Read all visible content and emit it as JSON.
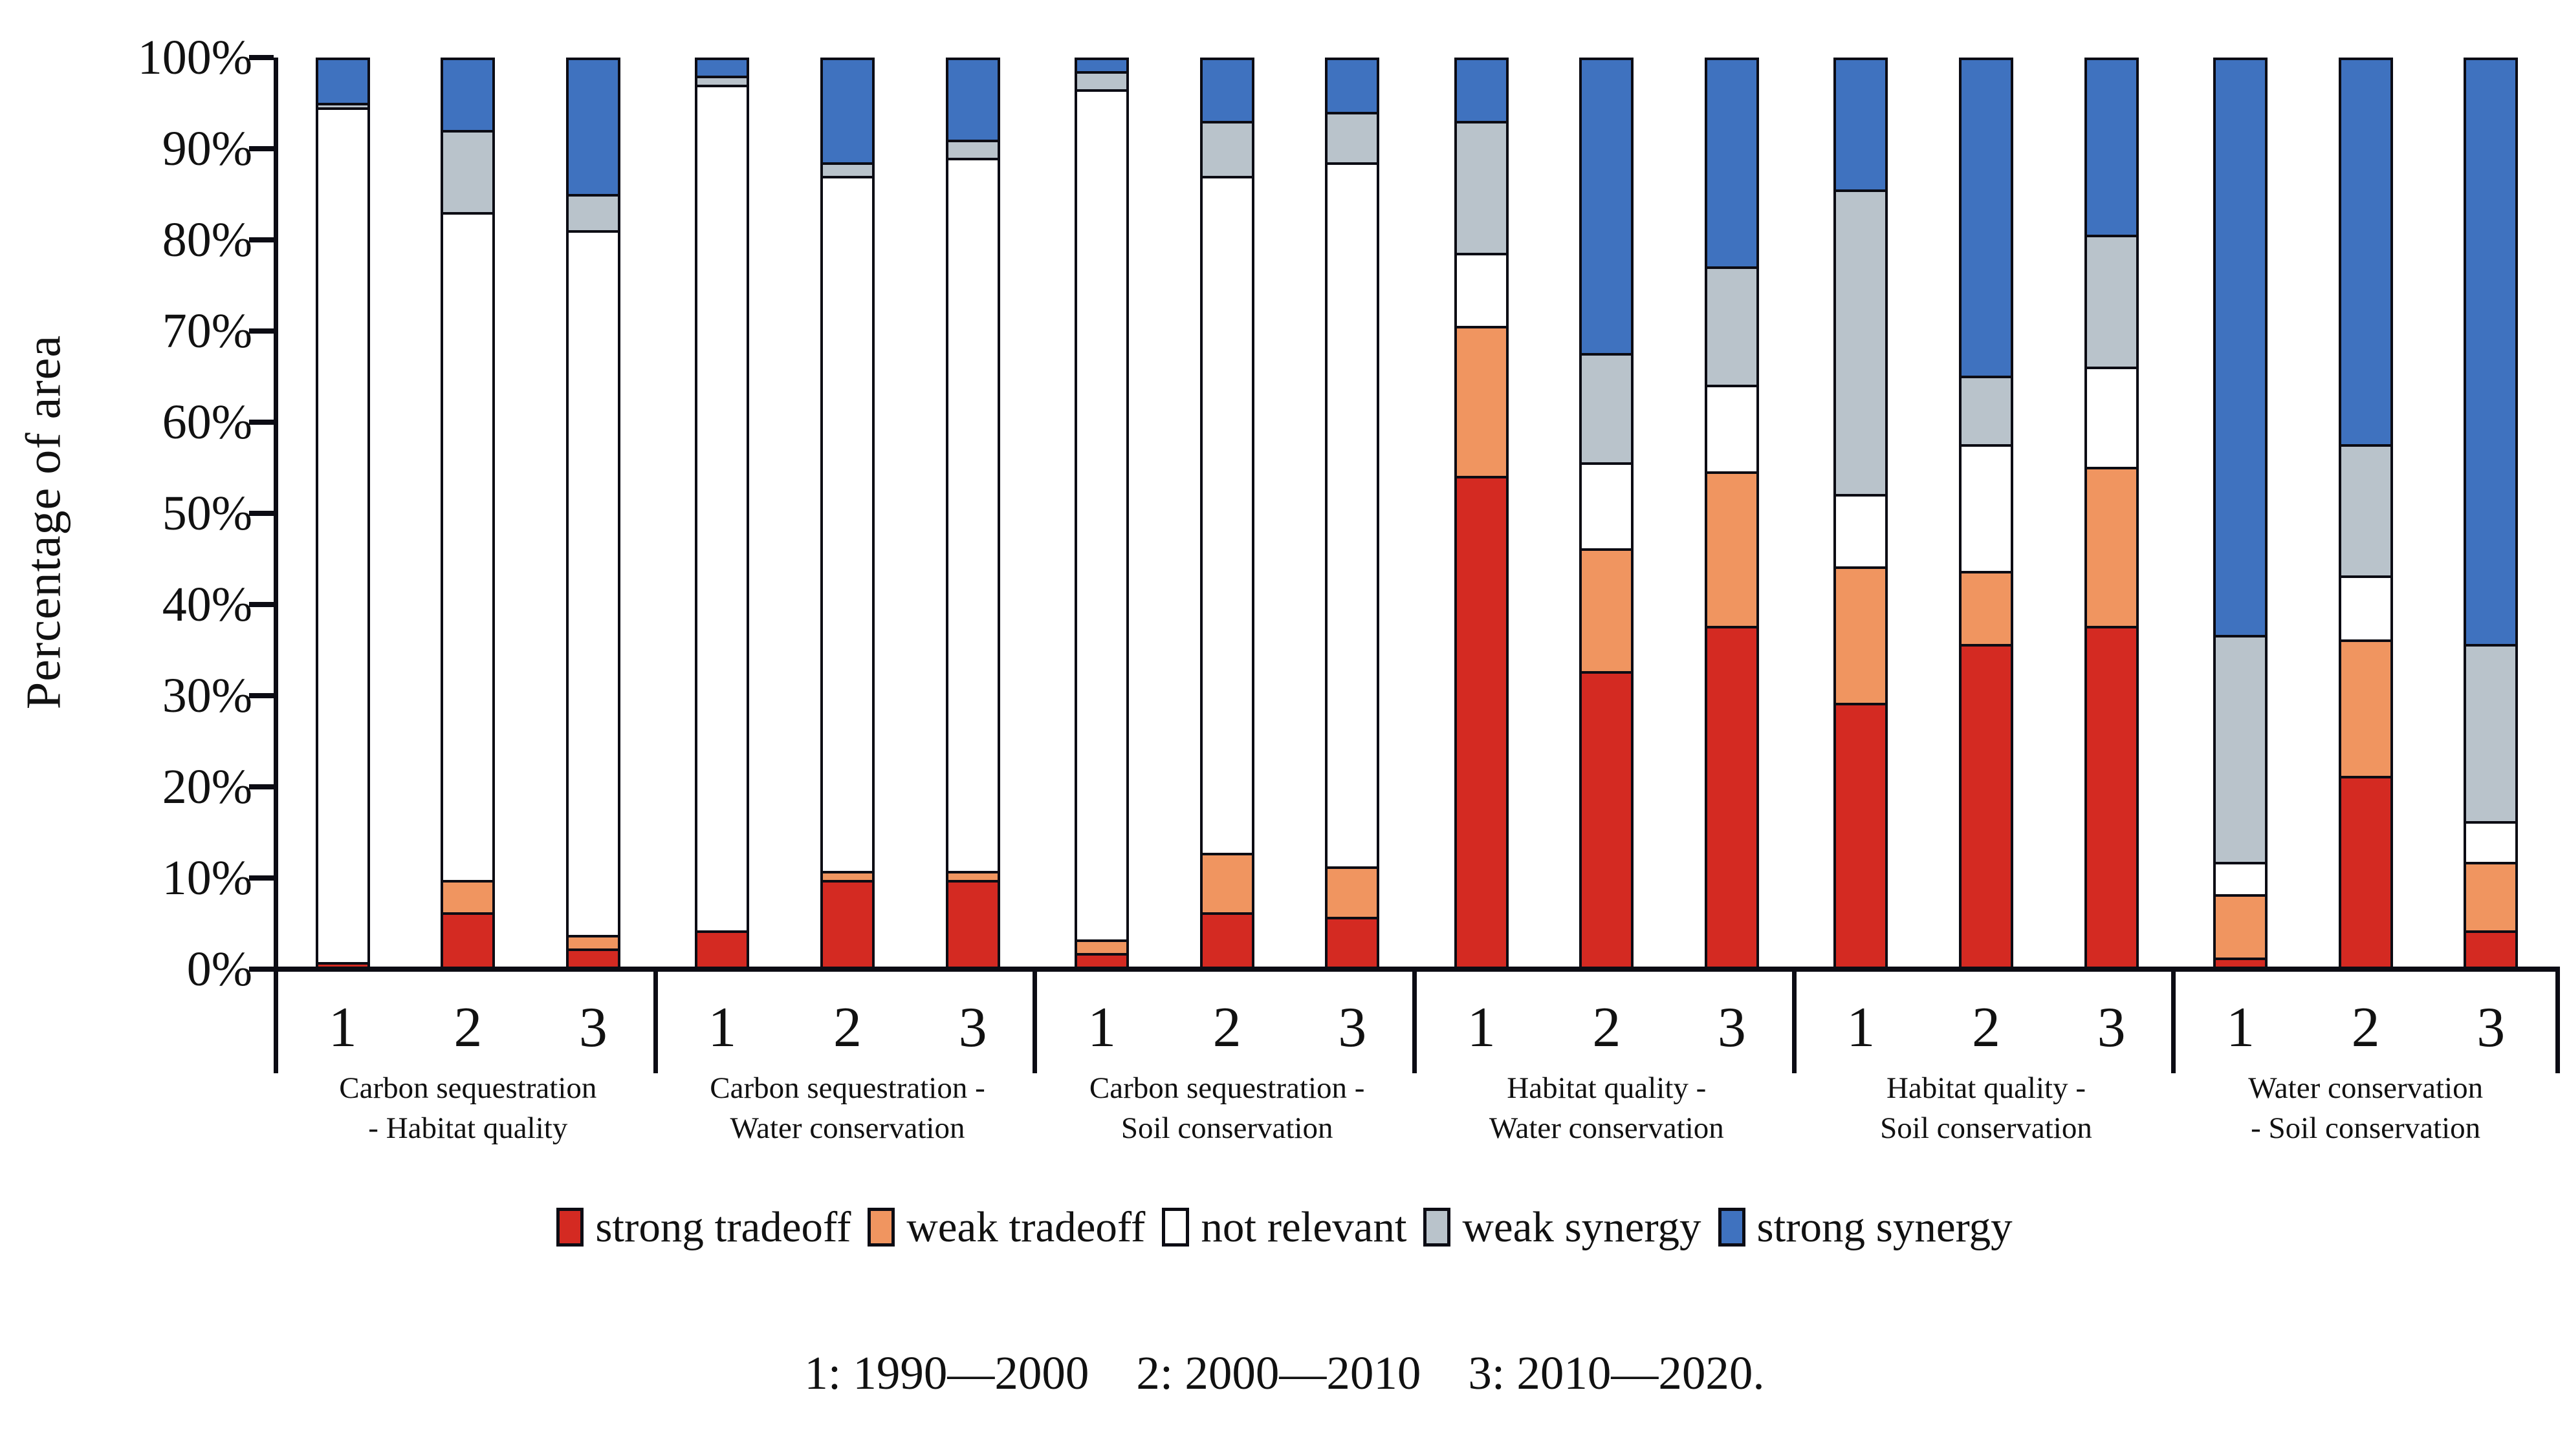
{
  "chart_data": {
    "type": "bar",
    "stacked": true,
    "title": "",
    "ylabel": "Percentage of area",
    "xlabel": "",
    "ylim": [
      0,
      100
    ],
    "ytick_step": 10,
    "ytick_labels": [
      "100%",
      "90%",
      "80%",
      "70%",
      "60%",
      "50%",
      "40%",
      "30%",
      "20%",
      "10%",
      "0%"
    ],
    "grid": false,
    "legend_position": "bottom",
    "periods": [
      "1",
      "2",
      "3"
    ],
    "series_order_bottom_to_top": [
      "strong tradeoff",
      "weak tradeoff",
      "not relevant",
      "weak synergy",
      "strong synergy"
    ],
    "legend": [
      {
        "label": "strong tradeoff",
        "color": "#d42a22"
      },
      {
        "label": "weak tradeoff",
        "color": "#f09560"
      },
      {
        "label": "not relevant",
        "color": "#ffffff"
      },
      {
        "label": "weak synergy",
        "color": "#b9c3cb"
      },
      {
        "label": "strong synergy",
        "color": "#3f72bf"
      }
    ],
    "groups": [
      {
        "label_lines": [
          "Carbon sequestration",
          "- Habitat quality"
        ],
        "bars": [
          {
            "period": "1",
            "values": [
              0.5,
              0,
              94,
              0.5,
              5
            ]
          },
          {
            "period": "2",
            "values": [
              6,
              3.5,
              73.5,
              9,
              8
            ]
          },
          {
            "period": "3",
            "values": [
              2,
              1.5,
              77.5,
              4,
              15
            ]
          }
        ]
      },
      {
        "label_lines": [
          "Carbon sequestration -",
          "Water conservation"
        ],
        "bars": [
          {
            "period": "1",
            "values": [
              4,
              0,
              93,
              1,
              2
            ]
          },
          {
            "period": "2",
            "values": [
              9.5,
              1,
              76.5,
              1.5,
              11.5
            ]
          },
          {
            "period": "3",
            "values": [
              9.5,
              1,
              78.5,
              2,
              9
            ]
          }
        ]
      },
      {
        "label_lines": [
          "Carbon sequestration -",
          "Soil conservation"
        ],
        "bars": [
          {
            "period": "1",
            "values": [
              1.5,
              1.5,
              93.5,
              2,
              1.5
            ]
          },
          {
            "period": "2",
            "values": [
              6,
              6.5,
              74.5,
              6,
              7
            ]
          },
          {
            "period": "3",
            "values": [
              5.5,
              5.5,
              77.5,
              5.5,
              6
            ]
          }
        ]
      },
      {
        "label_lines": [
          "Habitat quality -",
          "Water conservation"
        ],
        "bars": [
          {
            "period": "1",
            "values": [
              54,
              16.5,
              8,
              14.5,
              7
            ]
          },
          {
            "period": "2",
            "values": [
              32.5,
              13.5,
              9.5,
              12,
              32.5
            ]
          },
          {
            "period": "3",
            "values": [
              37.5,
              17,
              9.5,
              13,
              23
            ]
          }
        ]
      },
      {
        "label_lines": [
          "Habitat quality -",
          "Soil conservation"
        ],
        "bars": [
          {
            "period": "1",
            "values": [
              29,
              15,
              8,
              33.5,
              14.5
            ]
          },
          {
            "period": "2",
            "values": [
              35.5,
              8,
              14,
              7.5,
              35
            ]
          },
          {
            "period": "3",
            "values": [
              37.5,
              17.5,
              11,
              14.5,
              19.5
            ]
          }
        ]
      },
      {
        "label_lines": [
          "Water conservation",
          "- Soil conservation"
        ],
        "bars": [
          {
            "period": "1",
            "values": [
              1,
              7,
              3.5,
              25,
              63.5
            ]
          },
          {
            "period": "2",
            "values": [
              21,
              15,
              7,
              14.5,
              42.5
            ]
          },
          {
            "period": "3",
            "values": [
              4,
              7.5,
              4.5,
              19.5,
              64.5
            ]
          }
        ]
      }
    ],
    "footer_note": "1: 1990—2000    2: 2000—2010    3: 2010—2020."
  },
  "colors": {
    "strong_tradeoff": "#d42a22",
    "weak_tradeoff": "#f09560",
    "not_relevant": "#ffffff",
    "weak_synergy": "#b9c3cb",
    "strong_synergy": "#3f72bf",
    "axis": "#0c0c14",
    "background": "#ffffff"
  }
}
